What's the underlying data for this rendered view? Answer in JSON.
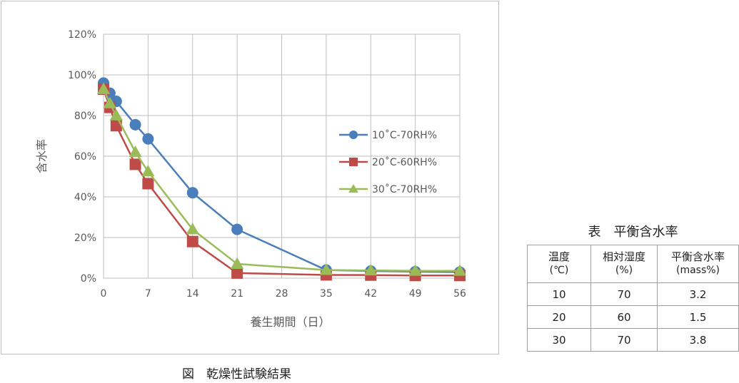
{
  "chart_data": {
    "type": "line",
    "xlabel": "養生期間（日）",
    "ylabel": "含水率",
    "x_ticks": [
      0,
      7,
      14,
      21,
      28,
      35,
      42,
      49,
      56
    ],
    "xlim": [
      0,
      56
    ],
    "y_ticks": [
      "0%",
      "20%",
      "40%",
      "60%",
      "80%",
      "100%",
      "120%"
    ],
    "ylim": [
      0,
      120
    ],
    "grid": true,
    "legend_position": "right",
    "series": [
      {
        "name": "10˚C-70RH%",
        "color": "#4a7ebb",
        "marker": "circle",
        "x": [
          0,
          1,
          2,
          5,
          7,
          14,
          21,
          35,
          42,
          49,
          56
        ],
        "values": [
          96,
          91,
          87,
          75.5,
          68.5,
          42,
          24,
          4,
          3.5,
          3.2,
          3
        ]
      },
      {
        "name": "20˚C-60RH%",
        "color": "#be4b48",
        "marker": "square",
        "x": [
          0,
          1,
          2,
          5,
          7,
          14,
          21,
          35,
          42,
          49,
          56
        ],
        "values": [
          93,
          84,
          75,
          56,
          46.5,
          18,
          2.5,
          1.6,
          1.5,
          1.3,
          1.3
        ]
      },
      {
        "name": "30˚C-70RH%",
        "color": "#9bbb59",
        "marker": "triangle",
        "x": [
          0,
          1,
          2,
          5,
          7,
          14,
          21,
          35,
          42,
          49,
          56
        ],
        "values": [
          93,
          86,
          80,
          62,
          52.5,
          24,
          7,
          4,
          3.8,
          3.6,
          3.6
        ]
      }
    ]
  },
  "figure_caption": "図　乾燥性試験結果",
  "table": {
    "title": "表　平衡含水率",
    "headers": [
      {
        "main": "温度",
        "sub": "(℃)"
      },
      {
        "main": "相対湿度",
        "sub": "(%)"
      },
      {
        "main": "平衡含水率",
        "sub": "(mass%)"
      }
    ],
    "rows": [
      [
        "10",
        "70",
        "3.2"
      ],
      [
        "20",
        "60",
        "1.5"
      ],
      [
        "30",
        "70",
        "3.8"
      ]
    ]
  }
}
